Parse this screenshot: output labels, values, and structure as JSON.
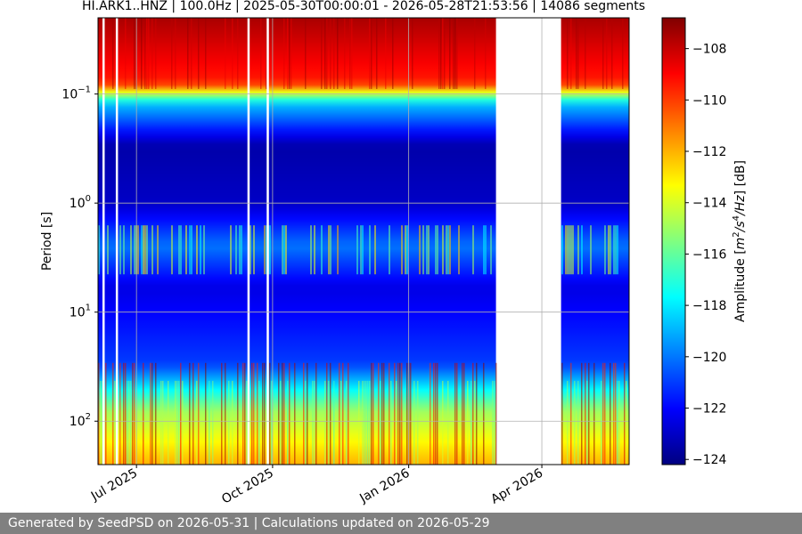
{
  "chart_data": {
    "type": "heatmap",
    "title": "HI.ARK1..HNZ | 100.0Hz | 2025-05-30T00:00:01 - 2026-05-28T21:53:56 | 14086 segments",
    "xlabel": "",
    "ylabel": "Period [s]",
    "y_scale": "log",
    "y_inverted": true,
    "ylim": [
      0.02,
      250
    ],
    "y_ticks": [
      {
        "value": 0.1,
        "base": "10",
        "exp": "−1"
      },
      {
        "value": 1,
        "base": "10",
        "exp": "0"
      },
      {
        "value": 10,
        "base": "10",
        "exp": "1"
      },
      {
        "value": 100,
        "base": "10",
        "exp": "2"
      }
    ],
    "xlim": [
      "2025-06-05",
      "2026-05-30"
    ],
    "x_ticks": [
      {
        "date": "2025-07-01",
        "label": "Jul 2025"
      },
      {
        "date": "2025-10-01",
        "label": "Oct 2025"
      },
      {
        "date": "2026-01-01",
        "label": "Jan 2026"
      },
      {
        "date": "2026-04-01",
        "label": "Apr 2026"
      }
    ],
    "data_gaps": [
      {
        "start": "2026-03-01",
        "end": "2026-04-14"
      }
    ],
    "grid": true,
    "colormap": "jet",
    "colorbar": {
      "label": "Amplitude [m²/s⁴/Hz] [dB]",
      "label_parts": {
        "prefix": "Amplitude [",
        "m": "m",
        "e2": "2",
        "s": "/s",
        "e4": "4",
        "hz": "/Hz",
        "suffix": "] [dB]"
      },
      "vmin": -124.2,
      "vmax": -106.8,
      "ticks": [
        -108,
        -110,
        -112,
        -114,
        -116,
        -118,
        -120,
        -122,
        -124
      ],
      "tick_labels": [
        "−108",
        "−110",
        "−112",
        "−114",
        "−116",
        "−118",
        "−120",
        "−122",
        "−124"
      ]
    },
    "period_profile_db": [
      {
        "period": 0.02,
        "db": -107.5
      },
      {
        "period": 0.08,
        "db": -109.5
      },
      {
        "period": 0.12,
        "db": -118.5
      },
      {
        "period": 0.3,
        "db": -123.5
      },
      {
        "period": 1.0,
        "db": -123.0
      },
      {
        "period": 2.5,
        "db": -120.0
      },
      {
        "period": 6.0,
        "db": -122.5
      },
      {
        "period": 30,
        "db": -121.0
      },
      {
        "period": 80,
        "db": -115.0
      },
      {
        "period": 250,
        "db": -112.0
      }
    ]
  },
  "footer": {
    "text": "Generated by SeedPSD on 2026-05-31 | Calculations updated on 2026-05-29"
  }
}
